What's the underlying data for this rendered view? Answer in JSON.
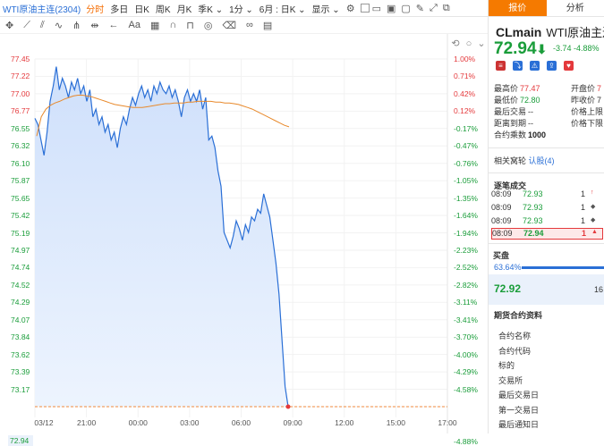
{
  "toolbar": {
    "title": "WTI原油主连(2304)",
    "items": [
      "分时",
      "多日",
      "日K",
      "周K",
      "月K",
      "季K ⌄",
      "1分 ⌄",
      "6月 : 日K ⌄",
      "显示 ⌄"
    ],
    "active_index": 0
  },
  "chart_data": {
    "type": "line",
    "title": "",
    "xlabel": "",
    "ylabel": "",
    "ylim": [
      72.94,
      77.45
    ],
    "prev_close": 76.68,
    "last_price": "72.94",
    "x_ticks": [
      "03/12",
      "21:00",
      "00:00",
      "03:00",
      "06:00",
      "09:00",
      "12:00",
      "15:00",
      "17:00"
    ],
    "y_ticks_left": [
      "77.45",
      "77.22",
      "77.00",
      "76.77",
      "76.55",
      "76.32",
      "76.10",
      "75.87",
      "75.65",
      "75.42",
      "75.19",
      "74.97",
      "74.74",
      "74.52",
      "74.29",
      "74.07",
      "73.84",
      "73.62",
      "73.39",
      "73.17"
    ],
    "y_ticks_right": [
      "1.00%",
      "0.71%",
      "0.42%",
      "0.12%",
      "-0.17%",
      "-0.47%",
      "-0.76%",
      "-1.05%",
      "-1.35%",
      "-1.64%",
      "-1.94%",
      "-2.23%",
      "-2.52%",
      "-2.82%",
      "-3.11%",
      "-3.41%",
      "-3.70%",
      "-4.00%",
      "-4.29%",
      "-4.58%"
    ],
    "y_last_pct": "-4.88%",
    "series": [
      {
        "values": [
          76.68,
          76.6,
          76.4,
          76.2,
          76.5,
          76.9,
          77.1,
          77.35,
          77.05,
          77.2,
          77.1,
          76.95,
          77.15,
          77.05,
          77.2,
          77.0,
          77.1,
          76.9,
          77.05,
          76.7,
          76.8,
          76.6,
          76.7,
          76.5,
          76.6,
          76.4,
          76.5,
          76.3,
          76.55,
          76.7,
          76.6,
          76.8,
          76.95,
          76.85,
          77.0,
          77.1,
          76.95,
          77.05,
          76.9,
          77.1,
          77.0,
          77.15,
          77.05,
          77.0,
          77.1,
          76.95,
          77.05,
          76.9,
          76.7,
          76.95,
          77.05,
          76.9,
          77.0,
          76.9,
          77.05,
          76.8,
          76.95,
          76.4,
          76.45,
          76.3,
          76.0,
          75.8,
          75.2,
          75.1,
          75.0,
          75.15,
          75.35,
          75.25,
          75.1,
          75.3,
          75.2,
          75.4,
          75.35,
          75.5,
          75.45,
          75.7,
          75.55,
          75.4,
          75.1,
          74.8,
          74.4,
          73.8,
          73.2,
          72.94
        ]
      },
      {
        "values": [
          76.45,
          76.7,
          76.8,
          76.85,
          76.88,
          76.9,
          76.93,
          76.95,
          76.97,
          76.98,
          76.98,
          76.97,
          76.96,
          76.94,
          76.92,
          76.9,
          76.88,
          76.86,
          76.85,
          76.84,
          76.83,
          76.82,
          76.82,
          76.82,
          76.83,
          76.84,
          76.85,
          76.86,
          76.87,
          76.87,
          76.88,
          76.88,
          76.88,
          76.89,
          76.89,
          76.9,
          76.9,
          76.9,
          76.9,
          76.89,
          76.89,
          76.88,
          76.88,
          76.87,
          76.86,
          76.84,
          76.82,
          76.8,
          76.77,
          76.74,
          76.71,
          76.68,
          76.65,
          76.62,
          76.59,
          76.57
        ]
      }
    ]
  },
  "right_panel": {
    "tabs": [
      "报价",
      "分析"
    ],
    "active_tab": 0,
    "symbol": "CLmain",
    "name": "WTI原油主连",
    "price": "72.94",
    "change": "-3.74",
    "change_pct": "-4.88%",
    "stats": [
      {
        "k": "最高价",
        "v": "77.47",
        "color": "#e4393c"
      },
      {
        "k": "最低价",
        "v": "72.80",
        "color": "#1a9d3a"
      },
      {
        "k": "最后交易",
        "v": "--",
        "color": "#333"
      },
      {
        "k": "距离到期",
        "v": "--",
        "color": "#333"
      },
      {
        "k": "合约乘数",
        "v": "1000",
        "color": "#222"
      }
    ],
    "stats2": [
      {
        "k": "开盘价",
        "v": "7",
        "color": "#e4393c"
      },
      {
        "k": "昨收价",
        "v": "7",
        "color": "#333"
      },
      {
        "k": "价格上限",
        "v": "",
        "color": "#333"
      },
      {
        "k": "价格下限",
        "v": "",
        "color": "#333"
      }
    ],
    "related_label": "相关窝轮",
    "related_link": "认股(4)",
    "trades_title": "逐笔成交",
    "trades": [
      {
        "time": "08:09",
        "price": "72.93",
        "qty": "1",
        "dir": "↑"
      },
      {
        "time": "08:09",
        "price": "72.93",
        "qty": "1",
        "dir": "◆"
      },
      {
        "time": "08:09",
        "price": "72.93",
        "qty": "1",
        "dir": "◆"
      },
      {
        "time": "08:09",
        "price": "72.94",
        "qty": "1",
        "dir": "▲"
      }
    ],
    "sell_label": "买盘",
    "bid_pct": "63.64%",
    "bid_price": "72.92",
    "bid_qty": "16",
    "futures_title": "期货合约资料",
    "futures_items": [
      "合约名称",
      "合约代码",
      "标的",
      "交易所",
      "最后交易日",
      "第一交易日",
      "最后通知日"
    ]
  }
}
